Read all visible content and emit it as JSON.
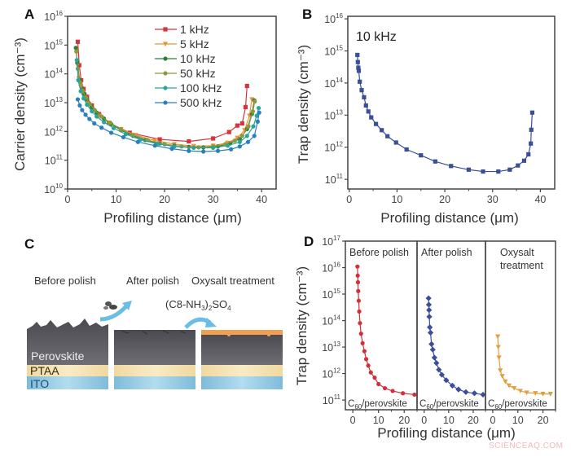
{
  "panels": {
    "a": "A",
    "b": "B",
    "c": "C",
    "d": "D"
  },
  "panel_c": {
    "titles": [
      "Before polish",
      "After polish",
      "Oxysalt treatment"
    ],
    "formula_parts": [
      "(C8-NH",
      "3",
      ")",
      "2",
      "SO",
      "4"
    ],
    "layers": [
      "Perovskite",
      "PTAA",
      "ITO"
    ],
    "colors": {
      "perovskite": "#55555a",
      "ptaa": "#f3e0a6",
      "ito": "#8fc6df",
      "oxysalt": "#f0a050",
      "arrow": "#6bbde6"
    }
  },
  "watermark": "SCIENCEAQ.COM",
  "chart_data": [
    {
      "id": "A",
      "type": "line",
      "xlabel": "Profiling distance (μm)",
      "ylabel": "Carrier density (cm⁻³)",
      "xlim": [
        0,
        43
      ],
      "ylim": [
        10000000000.0,
        1e+16
      ],
      "yscale": "log",
      "xticks": [
        0,
        10,
        20,
        30,
        40
      ],
      "yticks": [
        10000000000.0,
        100000000000.0,
        1000000000000.0,
        10000000000000.0,
        100000000000000.0,
        1000000000000000.0,
        1e+16
      ],
      "legend": "top-center",
      "series": [
        {
          "name": "1 kHz",
          "color": "#d8333a",
          "marker": "square",
          "x": [
            2.1,
            2.4,
            2.8,
            3.3,
            4,
            5,
            6.5,
            8.5,
            12.8,
            19,
            25,
            30,
            33.3,
            35,
            36,
            36.7,
            37
          ],
          "y": [
            1300000000000000.0,
            200000000000000.0,
            60000000000000.0,
            30000000000000.0,
            16000000000000.0,
            8000000000000.0,
            4000000000000.0,
            2000000000000.0,
            900000000000.0,
            530000000000.0,
            450000000000.0,
            570000000000.0,
            950000000000.0,
            1600000000000.0,
            1900000000000.0,
            7000000000000.0,
            38000000000000.0
          ]
        },
        {
          "name": "5 kHz",
          "color": "#f0903a",
          "marker": "triangle",
          "x": [
            1.8,
            2,
            2.3,
            2.7,
            3.2,
            4,
            5,
            6.5,
            8.5,
            11,
            14,
            18,
            22,
            26,
            30,
            33,
            35,
            36.5,
            37.5,
            38
          ],
          "y": [
            700000000000000.0,
            200000000000000.0,
            70000000000000.0,
            35000000000000.0,
            20000000000000.0,
            10000000000000.0,
            6000000000000.0,
            3500000000000.0,
            2000000000000.0,
            1200000000000.0,
            750000000000.0,
            480000000000.0,
            360000000000.0,
            310000000000.0,
            320000000000.0,
            400000000000.0,
            600000000000.0,
            1100000000000.0,
            3500000000000.0,
            13000000000000.0
          ]
        },
        {
          "name": "10 kHz",
          "color": "#2e7d3a",
          "marker": "circle",
          "x": [
            1.7,
            2,
            2.5,
            3,
            3.5,
            4,
            5,
            6,
            7.5,
            9,
            11,
            13.5,
            16,
            19,
            22,
            25,
            28,
            31,
            33.5,
            35.5,
            37,
            38,
            38.5
          ],
          "y": [
            800000000000000.0,
            250000000000000.0,
            60000000000000.0,
            30000000000000.0,
            20000000000000.0,
            13000000000000.0,
            7000000000000.0,
            4500000000000.0,
            2800000000000.0,
            1800000000000.0,
            1100000000000.0,
            700000000000.0,
            500000000000.0,
            380000000000.0,
            320000000000.0,
            290000000000.0,
            280000000000.0,
            300000000000.0,
            380000000000.0,
            550000000000.0,
            1200000000000.0,
            4000000000000.0,
            12000000000000.0
          ]
        },
        {
          "name": "50 kHz",
          "color": "#8c9a3a",
          "marker": "circle",
          "x": [
            1.8,
            2.1,
            2.6,
            3.1,
            3.8,
            4.6,
            5.6,
            7,
            8.8,
            11,
            13.5,
            16.5,
            20,
            23.5,
            27,
            30,
            32.5,
            34.5,
            36,
            37.3,
            38.2,
            38.6
          ],
          "y": [
            600000000000000.0,
            150000000000000.0,
            50000000000000.0,
            26000000000000.0,
            15000000000000.0,
            9000000000000.0,
            5500000000000.0,
            3300000000000.0,
            2000000000000.0,
            1200000000000.0,
            750000000000.0,
            500000000000.0,
            360000000000.0,
            300000000000.0,
            280000000000.0,
            300000000000.0,
            360000000000.0,
            480000000000.0,
            700000000000.0,
            1500000000000.0,
            5000000000000.0,
            11000000000000.0
          ]
        },
        {
          "name": "100 kHz",
          "color": "#2aa59a",
          "marker": "circle",
          "x": [
            1.9,
            2.2,
            2.7,
            3.3,
            4,
            5,
            6,
            7.5,
            9.5,
            12,
            15,
            18.5,
            22,
            26,
            30,
            33,
            35.5,
            37,
            38.3,
            39,
            39.4
          ],
          "y": [
            300000000000000.0,
            60000000000000.0,
            25000000000000.0,
            14000000000000.0,
            8500000000000.0,
            5000000000000.0,
            3300000000000.0,
            2100000000000.0,
            1300000000000.0,
            800000000000.0,
            520000000000.0,
            370000000000.0,
            300000000000.0,
            270000000000.0,
            270000000000.0,
            320000000000.0,
            430000000000.0,
            700000000000.0,
            1500000000000.0,
            3500000000000.0,
            6500000000000.0
          ]
        },
        {
          "name": "500 kHz",
          "color": "#2a7fc0",
          "marker": "circle",
          "x": [
            2.1,
            2.5,
            3,
            3.7,
            4.5,
            5.5,
            7,
            9,
            11.5,
            14.5,
            18,
            21.5,
            25,
            28,
            31,
            33.7,
            35.5,
            37.2,
            38.5,
            39.2,
            39.5
          ],
          "y": [
            13000000000000.0,
            8000000000000.0,
            5500000000000.0,
            3800000000000.0,
            2700000000000.0,
            1900000000000.0,
            1350000000000.0,
            900000000000.0,
            630000000000.0,
            430000000000.0,
            320000000000.0,
            250000000000.0,
            210000000000.0,
            200000000000.0,
            210000000000.0,
            240000000000.0,
            300000000000.0,
            430000000000.0,
            700000000000.0,
            2200000000000.0,
            4500000000000.0
          ]
        }
      ]
    },
    {
      "id": "B",
      "type": "line",
      "annotation": "10 kHz",
      "xlabel": "Profiling distance (μm)",
      "ylabel": "Trap density (cm⁻³)",
      "xlim": [
        -0.3,
        43
      ],
      "ylim": [
        50000000000.0,
        1.2e+16
      ],
      "yscale": "log",
      "xticks": [
        0,
        10,
        20,
        30,
        40
      ],
      "yticks": [
        100000000000.0,
        1000000000000.0,
        10000000000000.0,
        100000000000000.0,
        1000000000000000.0,
        1e+16
      ],
      "series": [
        {
          "color": "#3b4f99",
          "marker": "square",
          "x": [
            1.7,
            1.8,
            1.9,
            2,
            2.2,
            2.6,
            3.1,
            3.5,
            4,
            4.6,
            5.6,
            6.8,
            8,
            9.8,
            12,
            15,
            18,
            21.3,
            25,
            28,
            31.2,
            33.6,
            35.3,
            36.6,
            37.5,
            38,
            38.1,
            38.3
          ],
          "y": [
            750000000000000.0,
            450000000000000.0,
            300000000000000.0,
            240000000000000.0,
            110000000000000.0,
            60000000000000.0,
            36000000000000.0,
            20000000000000.0,
            13000000000000.0,
            8500000000000.0,
            5300000000000.0,
            3400000000000.0,
            2200000000000.0,
            1400000000000.0,
            850000000000.0,
            560000000000.0,
            360000000000.0,
            260000000000.0,
            200000000000.0,
            175000000000.0,
            175000000000.0,
            200000000000.0,
            270000000000.0,
            380000000000.0,
            600000000000.0,
            1300000000000.0,
            3500000000000.0,
            12000000000000.0
          ]
        }
      ]
    },
    {
      "id": "D",
      "type": "line",
      "xlabel": "Profiling distance (μm)",
      "ylabel": "Trap density (cm⁻³)",
      "xlim": [
        -2.9,
        25
      ],
      "ylim": [
        43000000000.0,
        1e+17
      ],
      "yscale": "log",
      "xticks": [
        0,
        10,
        20
      ],
      "yticks": [
        100000000000.0,
        1000000000000.0,
        10000000000000.0,
        100000000000000.0,
        1000000000000000.0,
        1e+16,
        1e+17
      ],
      "interface_label": {
        "c": "C",
        "sub": "60",
        "rest": "/perovskite"
      },
      "subplots": [
        {
          "title": [
            "Before polish"
          ],
          "color": "#d0303c",
          "marker": "circle",
          "x": [
            1.8,
            1.9,
            2,
            2.1,
            2.3,
            2.5,
            2.8,
            3.2,
            3.8,
            4.5,
            5.2,
            6,
            7,
            8.5,
            10,
            12.5,
            15.5,
            19.5,
            24
          ],
          "y": [
            1.1e+16,
            5000000000000000.0,
            2800000000000000.0,
            1300000000000000.0,
            560000000000000.0,
            220000000000000.0,
            80000000000000.0,
            32000000000000.0,
            14000000000000.0,
            7000000000000.0,
            3500000000000.0,
            2000000000000.0,
            1100000000000.0,
            700000000000.0,
            400000000000.0,
            280000000000.0,
            220000000000.0,
            180000000000.0,
            160000000000.0
          ]
        },
        {
          "title": [
            "After polish"
          ],
          "color": "#3b4f99",
          "marker": "diamond",
          "x": [
            1.8,
            1.9,
            2,
            2.1,
            2.3,
            2.6,
            3,
            3.5,
            4.2,
            5,
            6,
            7.2,
            9,
            11.5,
            14,
            17,
            20.5,
            24
          ],
          "y": [
            700000000000000.0,
            400000000000000.0,
            250000000000000.0,
            140000000000000.0,
            56000000000000.0,
            35000000000000.0,
            13000000000000.0,
            8000000000000.0,
            4000000000000.0,
            2500000000000.0,
            1400000000000.0,
            900000000000.0,
            560000000000.0,
            350000000000.0,
            250000000000.0,
            200000000000.0,
            180000000000.0,
            160000000000.0
          ]
        },
        {
          "title": [
            "Oxysalt",
            "treatment"
          ],
          "color": "#e0a040",
          "marker": "triangle",
          "x": [
            2,
            2.2,
            2.5,
            3,
            3.8,
            5,
            6.5,
            8.5,
            11,
            13.5,
            17,
            20,
            23
          ],
          "y": [
            25000000000000.0,
            10000000000000.0,
            4000000000000.0,
            1300000000000.0,
            800000000000.0,
            500000000000.0,
            350000000000.0,
            280000000000.0,
            220000000000.0,
            190000000000.0,
            180000000000.0,
            170000000000.0,
            170000000000.0
          ]
        }
      ]
    }
  ]
}
